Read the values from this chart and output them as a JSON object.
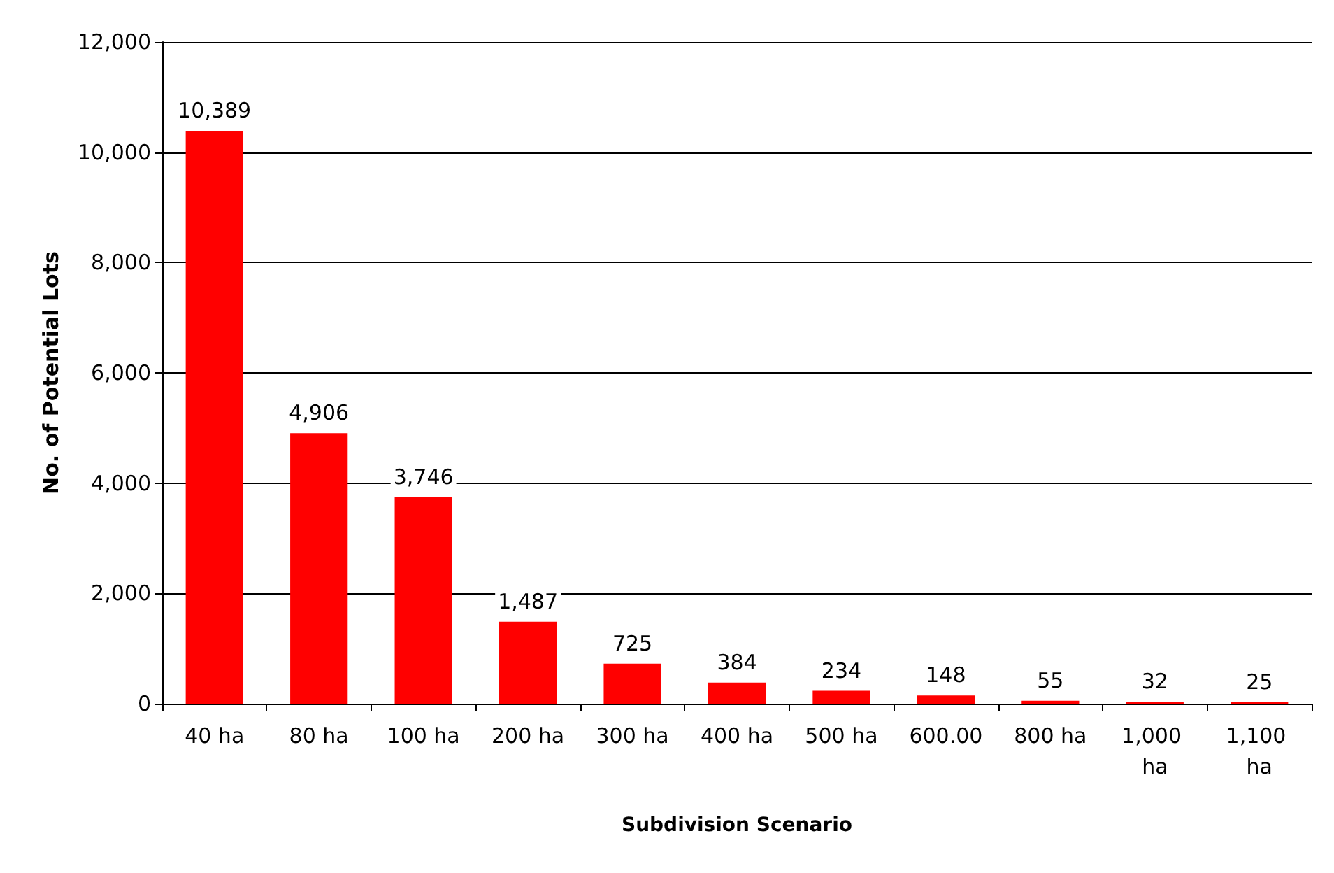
{
  "chart_data": {
    "type": "bar",
    "xlabel": "Subdivision Scenario",
    "ylabel": "No. of Potential Lots",
    "categories": [
      "40 ha",
      "80 ha",
      "100 ha",
      "200 ha",
      "300 ha",
      "400 ha",
      "500 ha",
      "600.00",
      "800 ha",
      "1,000 ha",
      "1,100 ha"
    ],
    "values": [
      10389,
      4906,
      3746,
      1487,
      725,
      384,
      234,
      148,
      55,
      32,
      25
    ],
    "color": "#ff0000",
    "ylim": [
      0,
      12000
    ],
    "yticks": [
      0,
      {
        "value": 2000,
        "label": "2,000"
      },
      {
        "value": 4000,
        "label": "4,000"
      },
      {
        "value": 6000,
        "label": "6,000"
      },
      {
        "value": 8000,
        "label": "8,000"
      },
      {
        "value": 10000,
        "label": "10,000"
      },
      {
        "value": 12000,
        "label": "12,000"
      }
    ],
    "value_labels": [
      "10,389",
      "4,906",
      "3,746",
      "1,487",
      "725",
      "384",
      "234",
      "148",
      "55",
      "32",
      "25"
    ],
    "grid": "y"
  }
}
